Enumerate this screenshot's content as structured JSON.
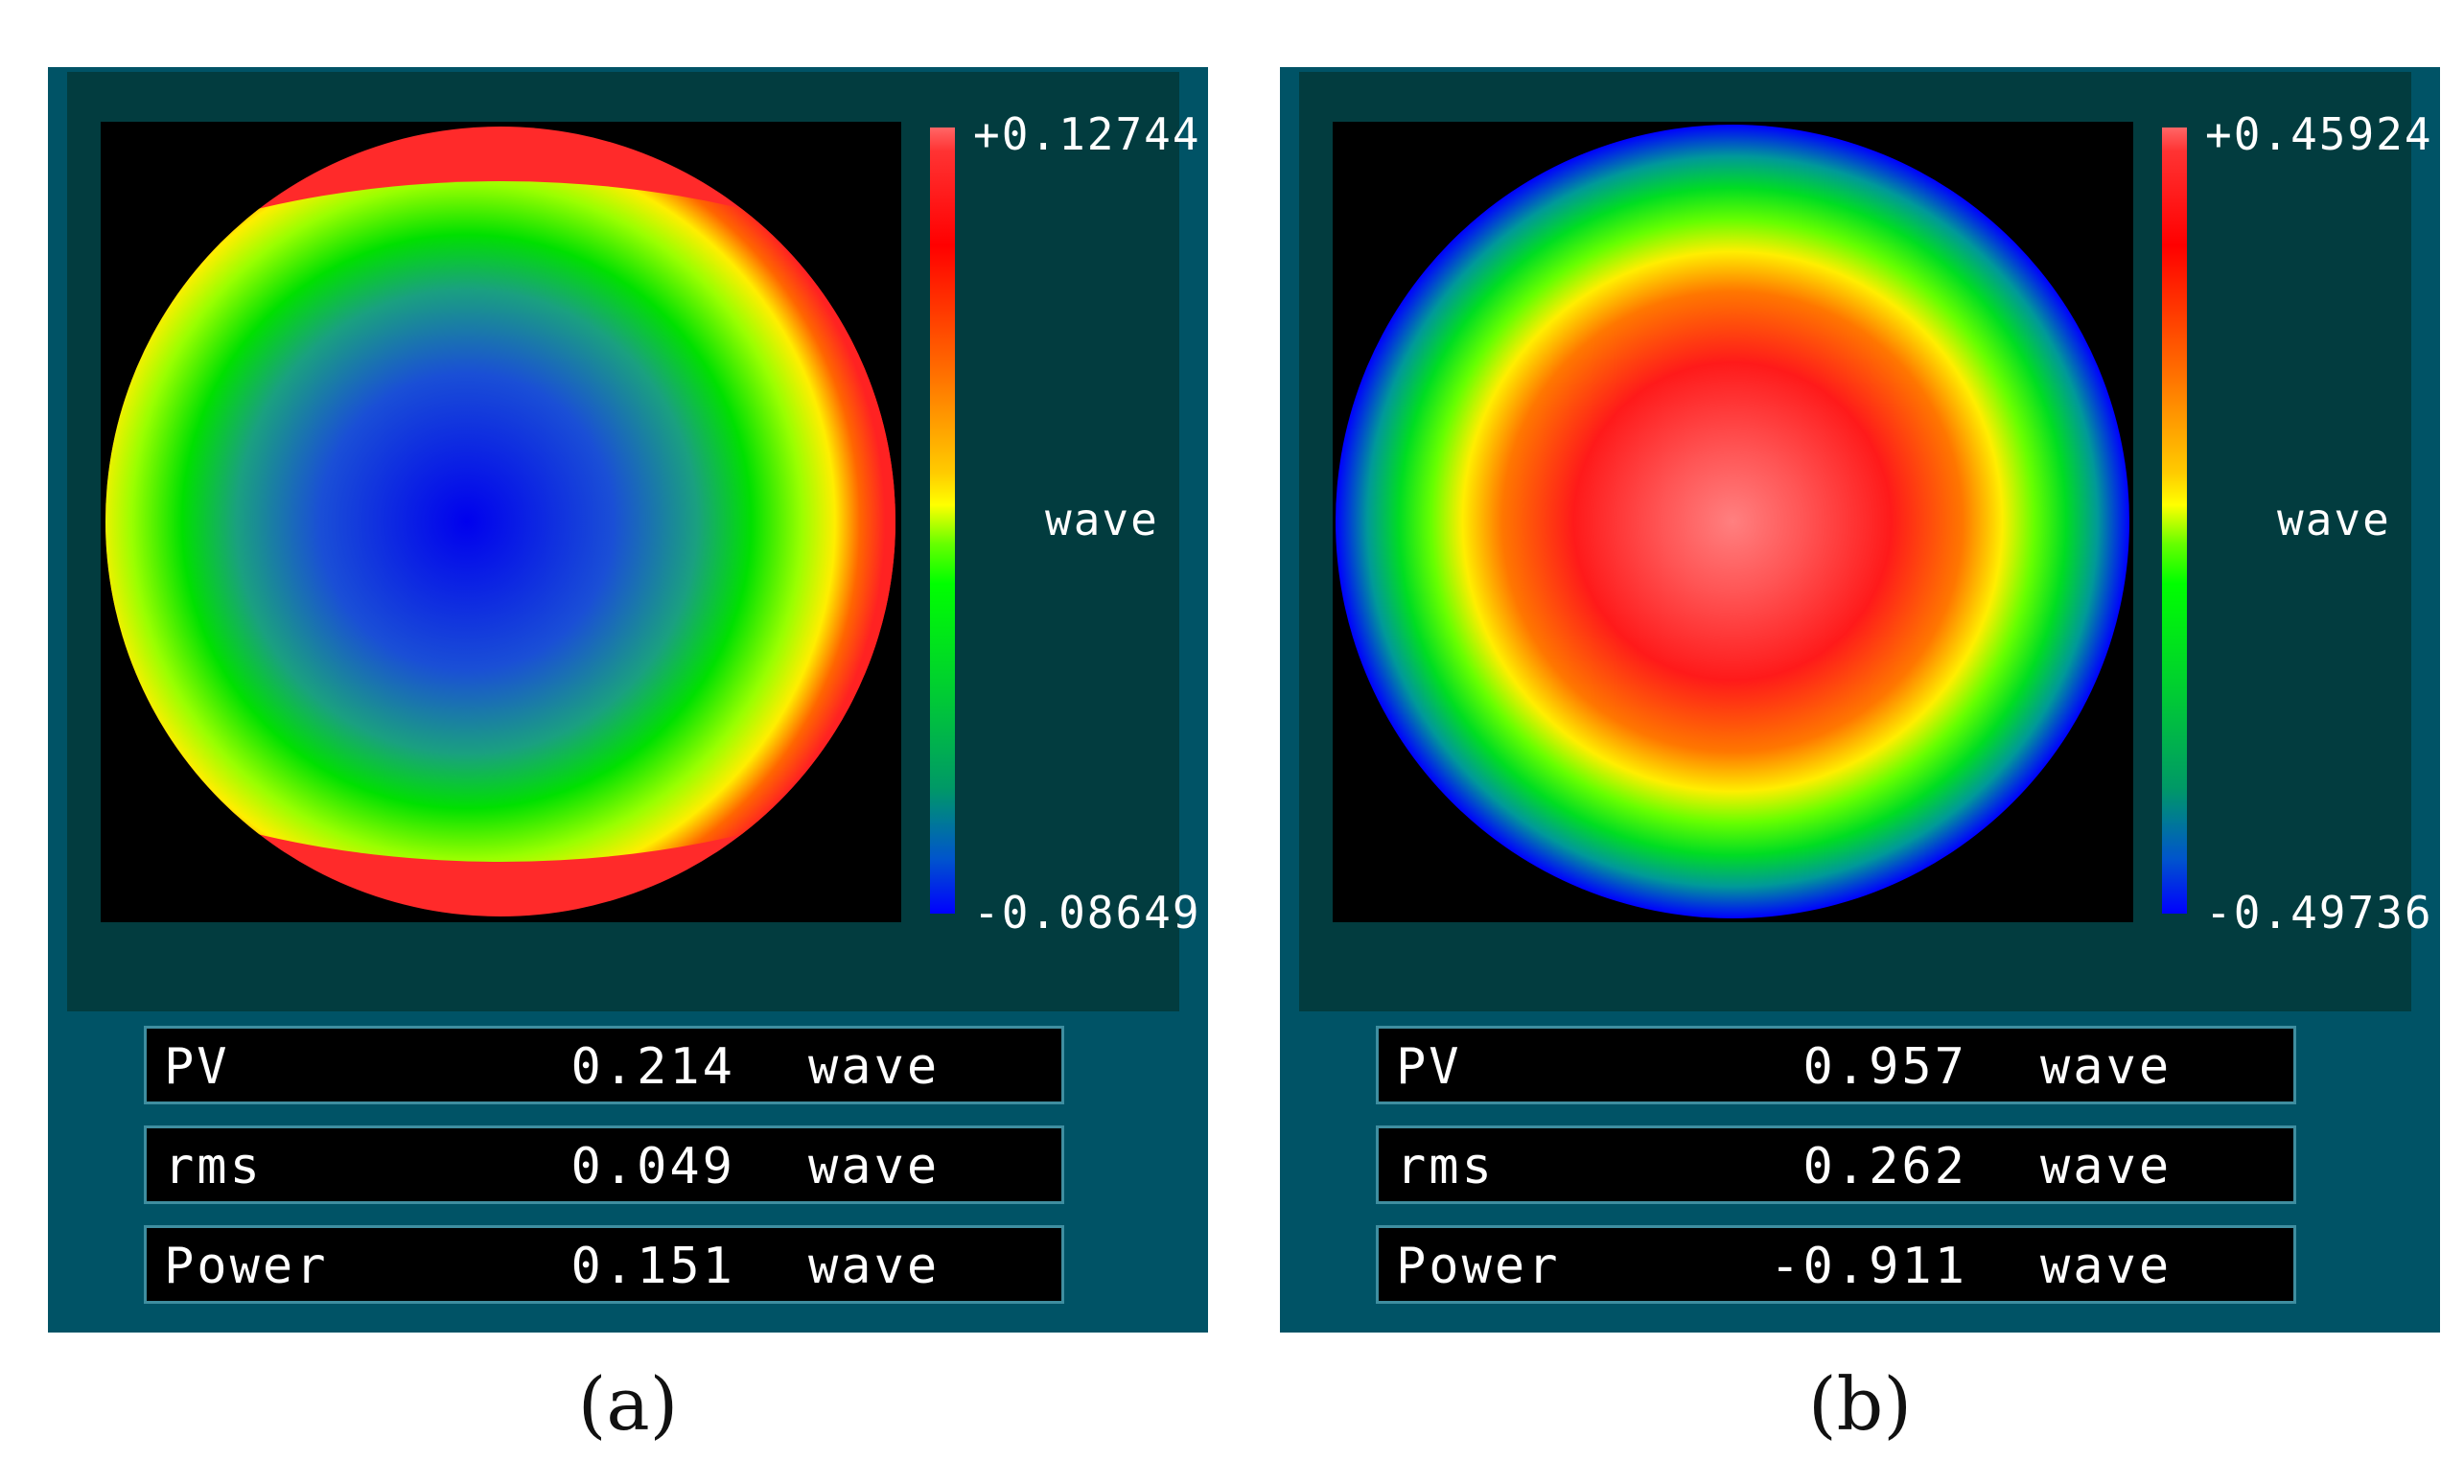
{
  "panels": [
    {
      "id": "a",
      "caption": "(a)",
      "colorbar": {
        "max": "+0.12744",
        "min": "-0.08649",
        "unit": "wave"
      },
      "stats": [
        {
          "label": "PV",
          "value": "0.214",
          "unit": "wave"
        },
        {
          "label": "rms",
          "value": "0.049",
          "unit": "wave"
        },
        {
          "label": "Power",
          "value": "0.151",
          "unit": "wave"
        }
      ]
    },
    {
      "id": "b",
      "caption": "(b)",
      "colorbar": {
        "max": "+0.45924",
        "min": "-0.49736",
        "unit": "wave"
      },
      "stats": [
        {
          "label": "PV",
          "value": "0.957",
          "unit": "wave"
        },
        {
          "label": "rms",
          "value": "0.262",
          "unit": "wave"
        },
        {
          "label": "Power",
          "value": "-0.911",
          "unit": "wave"
        }
      ]
    }
  ],
  "colors": {
    "panel_bg": "#005366",
    "inner_bg": "#023c3f",
    "row_border": "#3f8ea0"
  }
}
